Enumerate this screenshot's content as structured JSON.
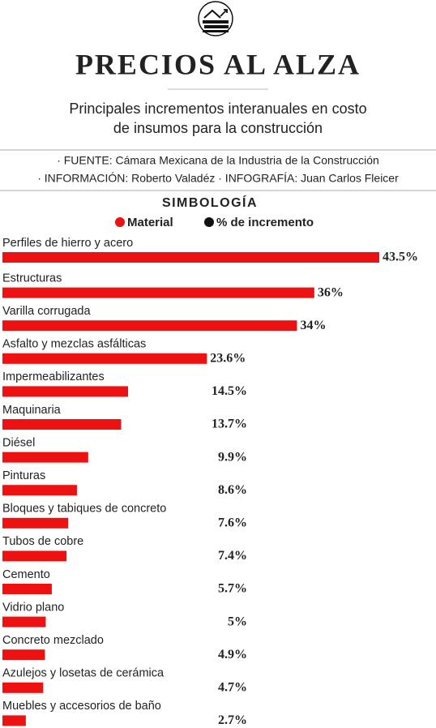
{
  "chart_data": {
    "type": "bar",
    "orientation": "horizontal",
    "title": "PRECIOS AL ALZA",
    "subtitle": [
      "Principales incrementos interanuales en costo",
      "de insumos para la construcción"
    ],
    "source": [
      "· FUENTE: Cámara Mexicana de la Industria de la Construcción",
      "· INFORMACIÓN: Roberto Valadéz · INFOGRAFÍA: Juan Carlos Fleicer"
    ],
    "legend_title": "SIMBOLOGÍA",
    "legend": [
      {
        "name": "Material",
        "color": "#ee1111"
      },
      {
        "name": "% de incremento",
        "color": "#111111"
      }
    ],
    "color": "#ee1111",
    "categories": [
      "Perfiles de hierro y acero",
      "Estructuras",
      "Varilla corrugada",
      "Asfalto y mezclas asfálticas",
      "Impermeabilizantes",
      "Maquinaria",
      "Diésel",
      "Pinturas",
      "Bloques y tabiques de concreto",
      "Tubos de cobre",
      "Cemento",
      "Vidrio plano",
      "Concreto mezclado",
      "Azulejos y losetas de cerámica",
      "Muebles y accesorios de baño"
    ],
    "values": [
      43.5,
      36,
      34,
      23.6,
      14.5,
      13.7,
      9.9,
      8.6,
      7.6,
      7.4,
      5.7,
      5,
      4.9,
      4.7,
      2.7
    ],
    "value_labels": [
      "43.5%",
      "36%",
      "34%",
      "23.6%",
      "14.5%",
      "13.7%",
      "9.9%",
      "8.6%",
      "7.6%",
      "7.4%",
      "5.7%",
      "5%",
      "4.9%",
      "4.7%",
      "2.7%"
    ]
  }
}
